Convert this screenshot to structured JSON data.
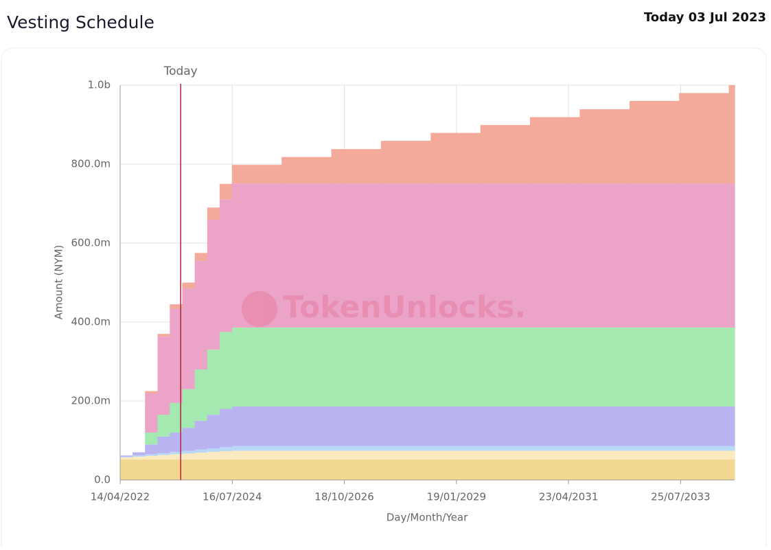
{
  "header": {
    "title": "Vesting Schedule",
    "today": "Today 03 Jul 2023"
  },
  "chart_data": {
    "type": "stacked-area-step",
    "watermark": "TokenUnlocks.",
    "x_label": "Day/Month/Year",
    "y_label": "Amount (NYM)",
    "annotation": {
      "text": "Today",
      "x": "2023-07-03",
      "color": "#b0213c"
    },
    "x": [
      "2022-04-14",
      "2022-07-14",
      "2022-10-14",
      "2023-01-14",
      "2023-04-14",
      "2023-07-14",
      "2023-10-14",
      "2024-01-14",
      "2024-04-14",
      "2024-07-14",
      "2025-07-14",
      "2026-07-14",
      "2027-07-14",
      "2028-07-14",
      "2029-07-14",
      "2030-07-14",
      "2031-07-14",
      "2032-07-14",
      "2033-07-14",
      "2034-07-14"
    ],
    "series": [
      {
        "color": "#f3d891",
        "values": [
          52,
          52,
          52,
          52,
          52,
          52,
          52,
          52,
          52,
          52,
          52,
          52,
          52,
          52,
          52,
          52,
          52,
          52,
          52,
          52
        ]
      },
      {
        "color": "#fbeac0",
        "values": [
          5,
          7,
          9,
          11,
          13,
          15,
          17,
          19,
          21,
          22,
          22,
          22,
          22,
          22,
          22,
          22,
          22,
          22,
          22,
          22
        ]
      },
      {
        "color": "#b9d8f6",
        "values": [
          2,
          3,
          4,
          5,
          6,
          7,
          8,
          9,
          10,
          12,
          12,
          12,
          12,
          12,
          12,
          12,
          12,
          12,
          12,
          12
        ]
      },
      {
        "color": "#bab3f2",
        "values": [
          3,
          8,
          25,
          42,
          49,
          58,
          73,
          85,
          97,
          100,
          100,
          100,
          100,
          100,
          100,
          100,
          100,
          100,
          100,
          100
        ]
      },
      {
        "color": "#a3e9b0",
        "values": [
          0,
          0,
          30,
          55,
          75,
          98,
          130,
          165,
          195,
          200,
          200,
          200,
          200,
          200,
          200,
          200,
          200,
          200,
          200,
          200
        ]
      },
      {
        "color": "#eba3c8",
        "values": [
          0,
          0,
          100,
          198,
          238,
          255,
          275,
          329,
          336,
          365,
          365,
          365,
          365,
          365,
          365,
          365,
          365,
          365,
          365,
          365
        ]
      },
      {
        "color": "#f4aa9b",
        "values": [
          0,
          0,
          5,
          7,
          12,
          15,
          20,
          31,
          39,
          47,
          67,
          87,
          108,
          128,
          148,
          168,
          188,
          209,
          229,
          249
        ]
      }
    ],
    "xlim": [
      "2022-04-14",
      "2034-08-26"
    ],
    "xticks": [
      {
        "value": "2022-04-14",
        "label": "14/04/2022"
      },
      {
        "value": "2024-07-16",
        "label": "16/07/2024"
      },
      {
        "value": "2026-10-18",
        "label": "18/10/2026"
      },
      {
        "value": "2029-01-19",
        "label": "19/01/2029"
      },
      {
        "value": "2031-04-23",
        "label": "23/04/2031"
      },
      {
        "value": "2033-07-25",
        "label": "25/07/2033"
      }
    ],
    "ylim": [
      0,
      1000
    ],
    "yticks": [
      {
        "value": 0,
        "label": "0.0"
      },
      {
        "value": 200,
        "label": "200.0m"
      },
      {
        "value": 400,
        "label": "400.0m"
      },
      {
        "value": 600,
        "label": "600.0m"
      },
      {
        "value": 800,
        "label": "800.0m"
      },
      {
        "value": 1000,
        "label": "1.0b"
      }
    ],
    "grid": true
  }
}
